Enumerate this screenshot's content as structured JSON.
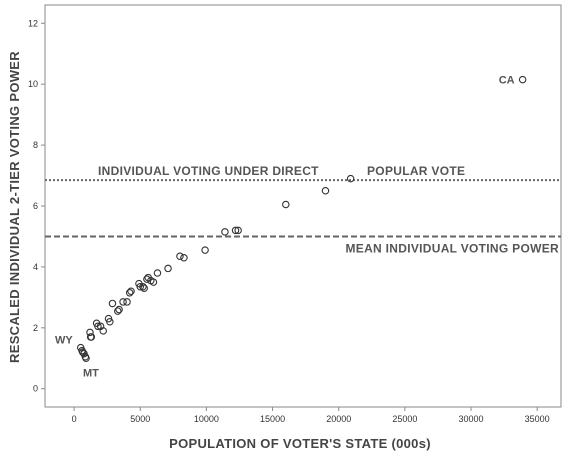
{
  "chart_data": {
    "type": "scatter",
    "xlabel": "POPULATION OF VOTER'S STATE (000s)",
    "ylabel": "RESCALED INDIVIDUAL 2-TIER VOTING POWER",
    "xlim": [
      -2200,
      36800
    ],
    "ylim": [
      -0.6,
      12.6
    ],
    "x_ticks": [
      0,
      5000,
      10000,
      15000,
      20000,
      25000,
      30000,
      35000
    ],
    "y_ticks": [
      0,
      2,
      4,
      6,
      8,
      10,
      12
    ],
    "grid": false,
    "marker": "open-circle",
    "reference_lines": [
      {
        "y": 6.85,
        "style": "dotted",
        "label_parts": [
          "INDIVIDUAL VOTING UNDER DIRECT",
          "POPULAR VOTE"
        ]
      },
      {
        "y": 5.0,
        "style": "dashed",
        "label_parts": [
          "MEAN INDIVIDUAL VOTING POWER"
        ]
      }
    ],
    "points": [
      {
        "x": 500,
        "y": 1.35
      },
      {
        "x": 600,
        "y": 1.25
      },
      {
        "x": 650,
        "y": 1.2
      },
      {
        "x": 750,
        "y": 1.15
      },
      {
        "x": 850,
        "y": 1.05
      },
      {
        "x": 900,
        "y": 1.0
      },
      {
        "x": 1200,
        "y": 1.85
      },
      {
        "x": 1300,
        "y": 1.7
      },
      {
        "x": 1250,
        "y": 1.7
      },
      {
        "x": 1700,
        "y": 2.15
      },
      {
        "x": 1800,
        "y": 2.05
      },
      {
        "x": 2000,
        "y": 2.05
      },
      {
        "x": 2200,
        "y": 1.9
      },
      {
        "x": 2600,
        "y": 2.3
      },
      {
        "x": 2900,
        "y": 2.8
      },
      {
        "x": 2700,
        "y": 2.2
      },
      {
        "x": 3300,
        "y": 2.55
      },
      {
        "x": 3400,
        "y": 2.6
      },
      {
        "x": 3700,
        "y": 2.85
      },
      {
        "x": 4000,
        "y": 2.85
      },
      {
        "x": 4200,
        "y": 3.15
      },
      {
        "x": 4300,
        "y": 3.2
      },
      {
        "x": 4900,
        "y": 3.45
      },
      {
        "x": 5000,
        "y": 3.35
      },
      {
        "x": 5200,
        "y": 3.35
      },
      {
        "x": 5300,
        "y": 3.3
      },
      {
        "x": 5500,
        "y": 3.6
      },
      {
        "x": 5600,
        "y": 3.65
      },
      {
        "x": 5800,
        "y": 3.55
      },
      {
        "x": 6000,
        "y": 3.5
      },
      {
        "x": 6300,
        "y": 3.8
      },
      {
        "x": 7100,
        "y": 3.95
      },
      {
        "x": 8000,
        "y": 4.35
      },
      {
        "x": 8300,
        "y": 4.3
      },
      {
        "x": 9900,
        "y": 4.55
      },
      {
        "x": 11400,
        "y": 5.15
      },
      {
        "x": 12200,
        "y": 5.2
      },
      {
        "x": 12400,
        "y": 5.2
      },
      {
        "x": 16000,
        "y": 6.05
      },
      {
        "x": 19000,
        "y": 6.5
      },
      {
        "x": 20900,
        "y": 6.9
      },
      {
        "x": 33900,
        "y": 10.15
      }
    ],
    "annotations": [
      {
        "text": "CA",
        "x": 33900,
        "y": 10.15
      },
      {
        "text": "WY",
        "x": 500,
        "y": 1.35
      },
      {
        "text": "MT",
        "x": 900,
        "y": 1.0
      }
    ]
  }
}
